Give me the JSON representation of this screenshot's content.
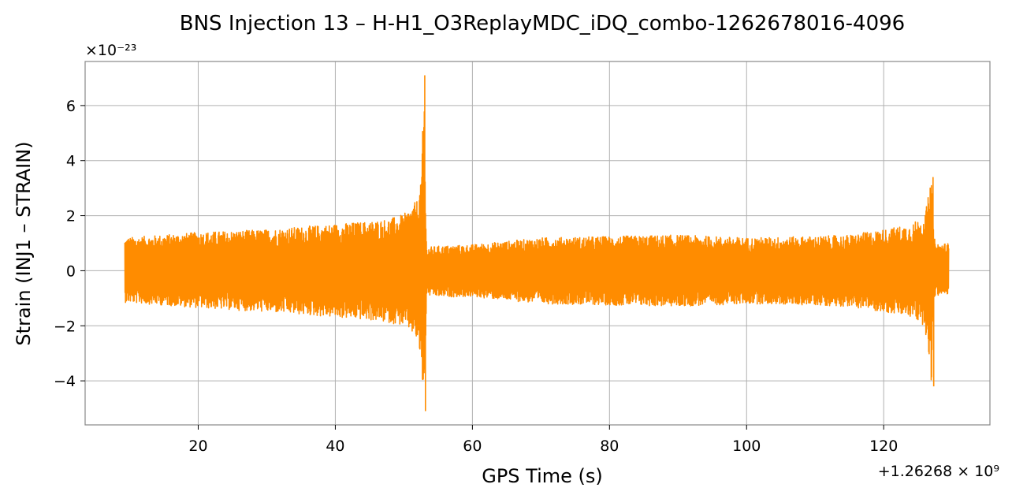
{
  "chart_data": {
    "type": "line",
    "title": "BNS Injection 13 – H-H1_O3ReplayMDC_iDQ_combo-1262678016-4096",
    "xlabel": "GPS Time (s)",
    "ylabel": "Strain (INJ1 – STRAIN)",
    "x_offset_text": "+1.26268 × 10⁹",
    "y_scale_text": "×10⁻²³",
    "xlim": [
      3.5,
      135.5
    ],
    "ylim": [
      -5.6,
      7.6
    ],
    "xticks": [
      20,
      40,
      60,
      80,
      100,
      120
    ],
    "xtick_labels": [
      "20",
      "40",
      "60",
      "80",
      "100",
      "120"
    ],
    "yticks": [
      -4,
      -2,
      0,
      2,
      4,
      6
    ],
    "ytick_labels": [
      "−4",
      "−2",
      "0",
      "2",
      "4",
      "6"
    ],
    "grid": true,
    "series": [
      {
        "color": "#ff8c00",
        "envelope": {
          "x": [
            9.3,
            12,
            20,
            30,
            40,
            45,
            48,
            50,
            51,
            52,
            52.5,
            53,
            53.1,
            53.3,
            55,
            60,
            70,
            80,
            90,
            100,
            110,
            115,
            120,
            124,
            126,
            127,
            127.3,
            127.5,
            128,
            129.5
          ],
          "upper": [
            1.2,
            1.25,
            1.4,
            1.5,
            1.7,
            1.8,
            1.9,
            2.05,
            2.3,
            2.6,
            3.2,
            7.1,
            4.0,
            0.85,
            0.9,
            0.95,
            1.2,
            1.25,
            1.3,
            1.2,
            1.25,
            1.3,
            1.5,
            1.7,
            2.0,
            3.4,
            1.5,
            1.0,
            1.0,
            1.0
          ],
          "lower": [
            -1.15,
            -1.2,
            -1.35,
            -1.5,
            -1.7,
            -1.8,
            -1.9,
            -2.0,
            -2.2,
            -2.6,
            -3.4,
            -5.1,
            -3.8,
            -0.9,
            -0.95,
            -0.95,
            -1.2,
            -1.25,
            -1.3,
            -1.2,
            -1.25,
            -1.3,
            -1.5,
            -1.7,
            -2.0,
            -4.2,
            -1.5,
            -0.95,
            -0.9,
            -0.85
          ]
        }
      }
    ]
  }
}
